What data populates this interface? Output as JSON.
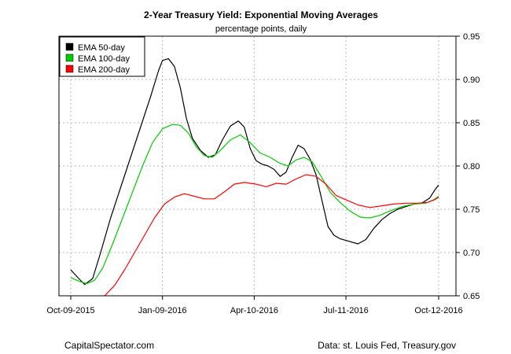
{
  "chart_data": {
    "type": "line",
    "title": "2-Year Treasury Yield: Exponential Moving Averages",
    "subtitle": "percentage points, daily",
    "xlabel": "",
    "ylabel": "",
    "x_ticks": [
      "Oct-09-2015",
      "Jan-09-2016",
      "Apr-10-2016",
      "Jul-11-2016",
      "Oct-12-2016"
    ],
    "x_tick_days": [
      0,
      92,
      184,
      276,
      369
    ],
    "xlim": [
      0,
      369
    ],
    "y_ticks": [
      "0.65",
      "0.70",
      "0.75",
      "0.80",
      "0.85",
      "0.90",
      "0.95"
    ],
    "ylim": [
      0.65,
      0.95
    ],
    "y_axis_side": "right",
    "grid": true,
    "legend_position": "top-left",
    "colors": {
      "ema50": "#000000",
      "ema100": "#00cc00",
      "ema200": "#ff0000",
      "grid": "#b8b8b8"
    },
    "series": [
      {
        "name": "EMA 50-day",
        "color": "#000000",
        "points": [
          [
            0,
            0.68
          ],
          [
            8,
            0.67
          ],
          [
            14,
            0.663
          ],
          [
            22,
            0.67
          ],
          [
            30,
            0.7
          ],
          [
            40,
            0.74
          ],
          [
            50,
            0.775
          ],
          [
            60,
            0.81
          ],
          [
            70,
            0.845
          ],
          [
            80,
            0.88
          ],
          [
            88,
            0.91
          ],
          [
            92,
            0.922
          ],
          [
            98,
            0.924
          ],
          [
            104,
            0.915
          ],
          [
            110,
            0.89
          ],
          [
            116,
            0.855
          ],
          [
            122,
            0.832
          ],
          [
            130,
            0.818
          ],
          [
            138,
            0.81
          ],
          [
            145,
            0.813
          ],
          [
            152,
            0.83
          ],
          [
            160,
            0.846
          ],
          [
            168,
            0.852
          ],
          [
            174,
            0.845
          ],
          [
            180,
            0.82
          ],
          [
            186,
            0.806
          ],
          [
            192,
            0.802
          ],
          [
            198,
            0.8
          ],
          [
            204,
            0.796
          ],
          [
            210,
            0.788
          ],
          [
            216,
            0.793
          ],
          [
            222,
            0.81
          ],
          [
            228,
            0.824
          ],
          [
            234,
            0.82
          ],
          [
            240,
            0.808
          ],
          [
            246,
            0.79
          ],
          [
            252,
            0.76
          ],
          [
            258,
            0.73
          ],
          [
            264,
            0.72
          ],
          [
            270,
            0.716
          ],
          [
            276,
            0.714
          ],
          [
            282,
            0.712
          ],
          [
            288,
            0.71
          ],
          [
            296,
            0.715
          ],
          [
            304,
            0.728
          ],
          [
            312,
            0.738
          ],
          [
            320,
            0.745
          ],
          [
            328,
            0.75
          ],
          [
            336,
            0.753
          ],
          [
            344,
            0.756
          ],
          [
            352,
            0.757
          ],
          [
            360,
            0.763
          ],
          [
            365,
            0.772
          ],
          [
            369,
            0.778
          ]
        ]
      },
      {
        "name": "EMA 100-day",
        "color": "#00cc00",
        "points": [
          [
            0,
            0.671
          ],
          [
            8,
            0.667
          ],
          [
            16,
            0.664
          ],
          [
            24,
            0.668
          ],
          [
            32,
            0.682
          ],
          [
            42,
            0.71
          ],
          [
            52,
            0.74
          ],
          [
            62,
            0.77
          ],
          [
            72,
            0.8
          ],
          [
            82,
            0.827
          ],
          [
            92,
            0.843
          ],
          [
            102,
            0.848
          ],
          [
            110,
            0.847
          ],
          [
            118,
            0.838
          ],
          [
            126,
            0.822
          ],
          [
            134,
            0.812
          ],
          [
            142,
            0.81
          ],
          [
            150,
            0.818
          ],
          [
            160,
            0.83
          ],
          [
            170,
            0.836
          ],
          [
            180,
            0.827
          ],
          [
            190,
            0.815
          ],
          [
            200,
            0.81
          ],
          [
            210,
            0.803
          ],
          [
            218,
            0.8
          ],
          [
            226,
            0.807
          ],
          [
            234,
            0.81
          ],
          [
            242,
            0.805
          ],
          [
            250,
            0.79
          ],
          [
            260,
            0.77
          ],
          [
            270,
            0.758
          ],
          [
            280,
            0.748
          ],
          [
            290,
            0.741
          ],
          [
            300,
            0.74
          ],
          [
            310,
            0.743
          ],
          [
            320,
            0.748
          ],
          [
            332,
            0.753
          ],
          [
            344,
            0.756
          ],
          [
            356,
            0.757
          ],
          [
            364,
            0.761
          ],
          [
            369,
            0.765
          ]
        ]
      },
      {
        "name": "EMA 200-day",
        "color": "#ff0000",
        "points": [
          [
            34,
            0.65
          ],
          [
            44,
            0.662
          ],
          [
            54,
            0.68
          ],
          [
            64,
            0.7
          ],
          [
            74,
            0.72
          ],
          [
            84,
            0.74
          ],
          [
            94,
            0.756
          ],
          [
            104,
            0.764
          ],
          [
            114,
            0.768
          ],
          [
            124,
            0.765
          ],
          [
            134,
            0.762
          ],
          [
            144,
            0.762
          ],
          [
            154,
            0.77
          ],
          [
            164,
            0.779
          ],
          [
            174,
            0.781
          ],
          [
            186,
            0.779
          ],
          [
            196,
            0.776
          ],
          [
            206,
            0.78
          ],
          [
            216,
            0.779
          ],
          [
            226,
            0.785
          ],
          [
            236,
            0.79
          ],
          [
            246,
            0.788
          ],
          [
            256,
            0.779
          ],
          [
            266,
            0.766
          ],
          [
            276,
            0.761
          ],
          [
            288,
            0.755
          ],
          [
            300,
            0.752
          ],
          [
            312,
            0.754
          ],
          [
            324,
            0.756
          ],
          [
            336,
            0.757
          ],
          [
            348,
            0.757
          ],
          [
            358,
            0.758
          ],
          [
            365,
            0.761
          ],
          [
            369,
            0.764
          ]
        ]
      }
    ]
  },
  "footer": {
    "left": "CapitalSpectator.com",
    "right": "Data: st. Louis Fed, Treasury.gov"
  }
}
